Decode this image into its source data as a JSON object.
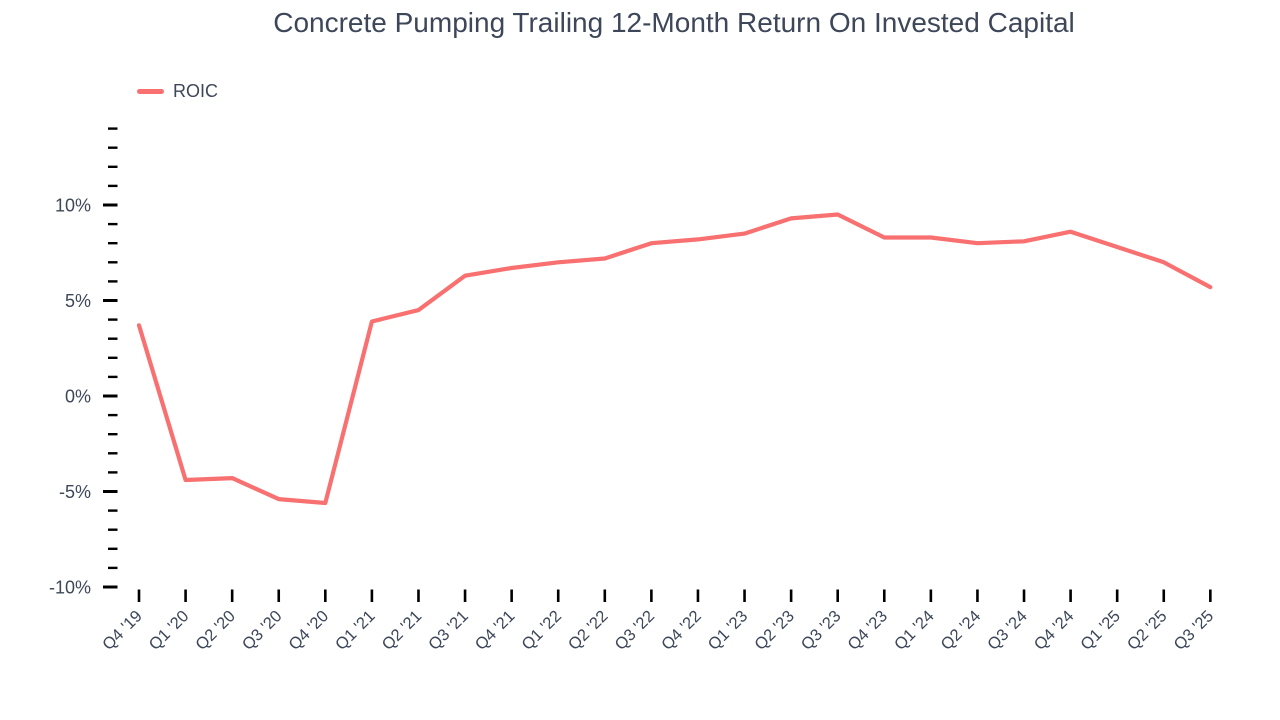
{
  "title": "Concrete Pumping Trailing 12-Month Return On Invested Capital",
  "legend": {
    "items": [
      {
        "label": "ROIC",
        "color": "#f87070"
      }
    ]
  },
  "colors": {
    "line": "#f87070",
    "text": "#3d4759",
    "tick": "#000000",
    "background": "#ffffff"
  },
  "chart_data": {
    "type": "line",
    "title": "Concrete Pumping Trailing 12-Month Return On Invested Capital",
    "categories": [
      "Q4 '19",
      "Q1 '20",
      "Q2 '20",
      "Q3 '20",
      "Q4 '20",
      "Q1 '21",
      "Q2 '21",
      "Q3 '21",
      "Q4 '21",
      "Q1 '22",
      "Q2 '22",
      "Q3 '22",
      "Q4 '22",
      "Q1 '23",
      "Q2 '23",
      "Q3 '23",
      "Q4 '23",
      "Q1 '24",
      "Q2 '24",
      "Q3 '24",
      "Q4 '24",
      "Q1 '25",
      "Q2 '25",
      "Q3 '25"
    ],
    "series": [
      {
        "name": "ROIC",
        "color": "#f87070",
        "values": [
          3.7,
          -4.4,
          -4.3,
          -5.4,
          -5.6,
          3.9,
          4.5,
          6.3,
          6.7,
          7.0,
          7.2,
          8.0,
          8.2,
          8.5,
          9.3,
          9.5,
          8.3,
          8.3,
          8.0,
          8.1,
          8.6,
          7.8,
          7.0,
          5.7
        ]
      }
    ],
    "unit": "%",
    "ylim": [
      -10,
      14
    ],
    "ytick_major": [
      -10,
      -5,
      0,
      5,
      10
    ],
    "ytick_labels": [
      "-10%",
      "-5%",
      "0%",
      "5%",
      "10%"
    ],
    "ytick_minor_step": 1,
    "grid": false,
    "legend_position": "top-left",
    "xlabel": "",
    "ylabel": ""
  }
}
